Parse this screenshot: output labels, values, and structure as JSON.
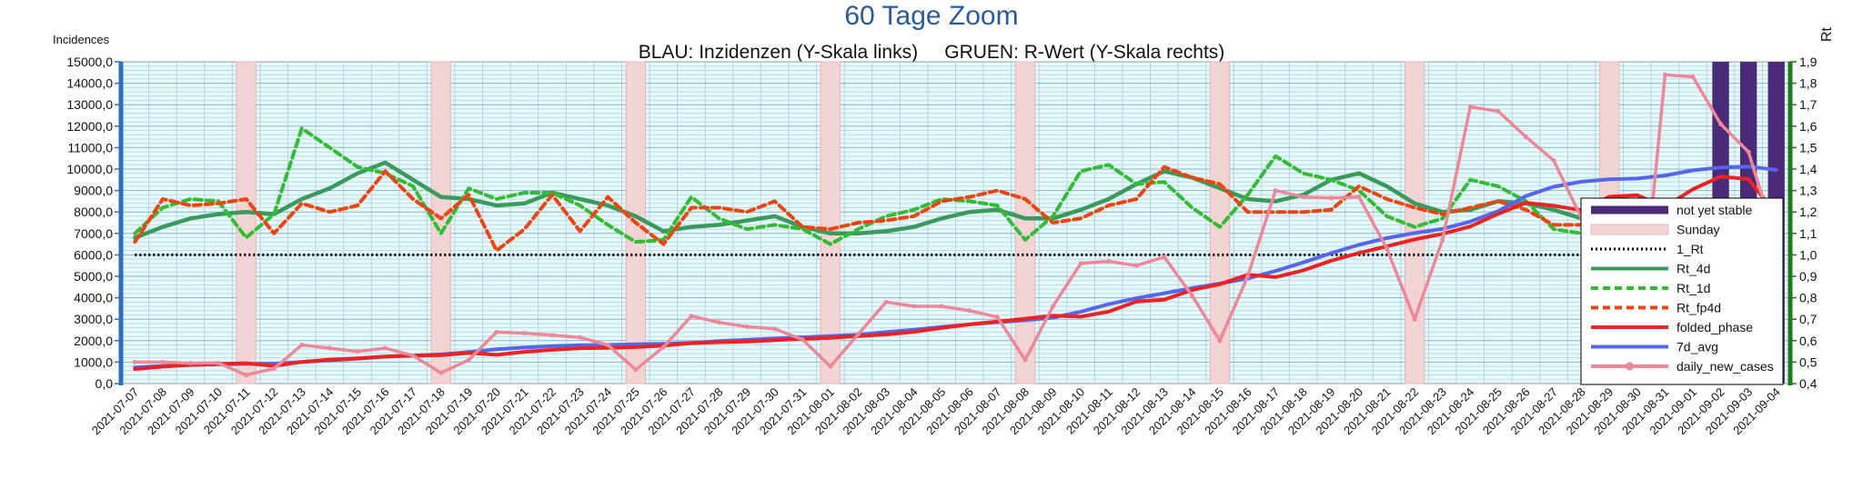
{
  "chart_data": {
    "type": "line",
    "title": "60 Tage Zoom",
    "subtitle": "BLAU: Inzidenzen (Y-Skala links)     GRUEN: R-Wert (Y-Skala rechts)",
    "ylabel_left": "Incidences",
    "ylabel_right": "Rt",
    "ylim_left": [
      0,
      15000
    ],
    "ylim_right": [
      0.4,
      1.9
    ],
    "y_ticks_left": [
      "0,0",
      "1000,0",
      "2000,0",
      "3000,0",
      "4000,0",
      "5000,0",
      "6000,0",
      "7000,0",
      "8000,0",
      "9000,0",
      "10000,0",
      "11000,0",
      "12000,0",
      "13000,0",
      "14000,0",
      "15000,0"
    ],
    "y_ticks_right": [
      "0,4",
      "0,5",
      "0,6",
      "0,7",
      "0,8",
      "0,9",
      "1,0",
      "1,1",
      "1,2",
      "1,3",
      "1,4",
      "1,5",
      "1,6",
      "1,7",
      "1,8",
      "1,9"
    ],
    "grid": true,
    "legend_position": "right",
    "dates": [
      "2021-07-07",
      "2021-07-08",
      "2021-07-09",
      "2021-07-10",
      "2021-07-11",
      "2021-07-12",
      "2021-07-13",
      "2021-07-14",
      "2021-07-15",
      "2021-07-16",
      "2021-07-17",
      "2021-07-18",
      "2021-07-19",
      "2021-07-20",
      "2021-07-21",
      "2021-07-22",
      "2021-07-23",
      "2021-07-24",
      "2021-07-25",
      "2021-07-26",
      "2021-07-27",
      "2021-07-28",
      "2021-07-29",
      "2021-07-30",
      "2021-07-31",
      "2021-08-01",
      "2021-08-02",
      "2021-08-03",
      "2021-08-04",
      "2021-08-05",
      "2021-08-06",
      "2021-08-07",
      "2021-08-08",
      "2021-08-09",
      "2021-08-10",
      "2021-08-11",
      "2021-08-12",
      "2021-08-13",
      "2021-08-14",
      "2021-08-15",
      "2021-08-16",
      "2021-08-17",
      "2021-08-18",
      "2021-08-19",
      "2021-08-20",
      "2021-08-21",
      "2021-08-22",
      "2021-08-23",
      "2021-08-24",
      "2021-08-25",
      "2021-08-26",
      "2021-08-27",
      "2021-08-28",
      "2021-08-29",
      "2021-08-30",
      "2021-08-31",
      "2021-09-01",
      "2021-09-02",
      "2021-09-03",
      "2021-09-04"
    ],
    "sunday_dates": [
      "2021-07-11",
      "2021-07-18",
      "2021-07-25",
      "2021-08-01",
      "2021-08-08",
      "2021-08-15",
      "2021-08-22",
      "2021-08-29"
    ],
    "not_yet_stable_dates": [
      "2021-09-02",
      "2021-09-03",
      "2021-09-04"
    ],
    "series": [
      {
        "name": "not yet stable",
        "axis": "left",
        "kind": "bar",
        "color": "#4b2a7a"
      },
      {
        "name": "Sunday",
        "axis": "left",
        "kind": "bar",
        "color": "#f2d4d4"
      },
      {
        "name": "1_Rt",
        "axis": "right",
        "kind": "line",
        "style": "dotted",
        "color": "#000000",
        "values": [
          1.0,
          1.0,
          1.0,
          1.0,
          1.0,
          1.0,
          1.0,
          1.0,
          1.0,
          1.0,
          1.0,
          1.0,
          1.0,
          1.0,
          1.0,
          1.0,
          1.0,
          1.0,
          1.0,
          1.0,
          1.0,
          1.0,
          1.0,
          1.0,
          1.0,
          1.0,
          1.0,
          1.0,
          1.0,
          1.0,
          1.0,
          1.0,
          1.0,
          1.0,
          1.0,
          1.0,
          1.0,
          1.0,
          1.0,
          1.0,
          1.0,
          1.0,
          1.0,
          1.0,
          1.0,
          1.0,
          1.0,
          1.0,
          1.0,
          1.0,
          1.0,
          1.0,
          1.0,
          1.0,
          1.0,
          1.0,
          1.0,
          1.0,
          1.0,
          1.0
        ]
      },
      {
        "name": "Rt_4d",
        "axis": "right",
        "kind": "line",
        "style": "solid",
        "color": "#3a9a5b",
        "values": [
          1.08,
          1.13,
          1.17,
          1.19,
          1.2,
          1.19,
          1.26,
          1.31,
          1.38,
          1.43,
          1.35,
          1.27,
          1.26,
          1.23,
          1.24,
          1.29,
          1.26,
          1.23,
          1.18,
          1.11,
          1.13,
          1.14,
          1.16,
          1.18,
          1.13,
          1.1,
          1.1,
          1.11,
          1.13,
          1.17,
          1.2,
          1.21,
          1.17,
          1.17,
          1.21,
          1.26,
          1.33,
          1.39,
          1.36,
          1.31,
          1.26,
          1.25,
          1.28,
          1.35,
          1.38,
          1.32,
          1.24,
          1.2,
          1.21,
          1.25,
          1.24,
          1.21,
          1.17,
          1.12,
          1.07,
          1.06,
          1.07,
          1.06,
          1.06,
          1.02
        ]
      },
      {
        "name": "Rt_1d",
        "axis": "right",
        "kind": "line",
        "style": "dashed",
        "color": "#33bb33",
        "values": [
          1.1,
          1.22,
          1.26,
          1.25,
          1.08,
          1.19,
          1.59,
          1.5,
          1.41,
          1.38,
          1.32,
          1.1,
          1.31,
          1.26,
          1.29,
          1.29,
          1.23,
          1.14,
          1.06,
          1.07,
          1.27,
          1.17,
          1.12,
          1.14,
          1.12,
          1.05,
          1.12,
          1.18,
          1.21,
          1.26,
          1.25,
          1.23,
          1.07,
          1.18,
          1.39,
          1.42,
          1.33,
          1.34,
          1.22,
          1.13,
          1.28,
          1.46,
          1.38,
          1.35,
          1.3,
          1.18,
          1.13,
          1.17,
          1.35,
          1.32,
          1.25,
          1.12,
          1.1,
          1.04,
          1.03,
          1.05,
          1.03,
          1.02,
          1.0,
          0.91
        ]
      },
      {
        "name": "Rt_fp4d",
        "axis": "right",
        "kind": "line",
        "style": "dashed",
        "color": "#ee4411",
        "values": [
          1.06,
          1.26,
          1.23,
          1.24,
          1.26,
          1.1,
          1.24,
          1.2,
          1.23,
          1.39,
          1.26,
          1.17,
          1.28,
          1.02,
          1.12,
          1.28,
          1.11,
          1.27,
          1.15,
          1.05,
          1.22,
          1.22,
          1.2,
          1.25,
          1.13,
          1.12,
          1.15,
          1.16,
          1.18,
          1.25,
          1.27,
          1.3,
          1.26,
          1.15,
          1.17,
          1.23,
          1.26,
          1.41,
          1.36,
          1.33,
          1.2,
          1.2,
          1.2,
          1.21,
          1.32,
          1.26,
          1.22,
          1.19,
          1.22,
          1.25,
          1.21,
          1.14,
          1.14,
          1.04,
          0.98,
          1.12,
          1.11,
          1.09,
          1.15,
          0.92
        ]
      },
      {
        "name": "folded_phase",
        "axis": "left",
        "kind": "line",
        "style": "solid",
        "color": "#ee2222",
        "values": [
          680,
          790,
          870,
          910,
          950,
          820,
          1010,
          1120,
          1180,
          1260,
          1300,
          1320,
          1430,
          1340,
          1480,
          1570,
          1650,
          1660,
          1700,
          1770,
          1880,
          1930,
          1960,
          2020,
          2090,
          2130,
          2210,
          2290,
          2410,
          2590,
          2760,
          2890,
          3020,
          3170,
          3120,
          3350,
          3820,
          3910,
          4360,
          4630,
          5070,
          4960,
          5280,
          5730,
          6090,
          6400,
          6720,
          6980,
          7320,
          7910,
          8430,
          8290,
          8080,
          8710,
          8780,
          8240,
          9060,
          9650,
          9530,
          7900
        ]
      },
      {
        "name": "7d_avg",
        "axis": "left",
        "kind": "line",
        "style": "solid",
        "color": "#5566ee",
        "values": [
          750,
          820,
          870,
          900,
          920,
          930,
          1010,
          1080,
          1160,
          1250,
          1310,
          1360,
          1470,
          1600,
          1680,
          1750,
          1790,
          1800,
          1830,
          1850,
          1900,
          1980,
          2040,
          2100,
          2160,
          2210,
          2280,
          2400,
          2510,
          2640,
          2760,
          2860,
          2950,
          3070,
          3350,
          3700,
          3980,
          4210,
          4450,
          4660,
          4900,
          5250,
          5650,
          6080,
          6470,
          6780,
          7020,
          7210,
          7550,
          8040,
          8740,
          9180,
          9410,
          9520,
          9560,
          9700,
          9940,
          10070,
          10120,
          9960
        ]
      },
      {
        "name": "daily_new_cases",
        "axis": "left",
        "kind": "line",
        "style": "solid",
        "marker": "circle",
        "color": "#ee8899",
        "values": [
          1000,
          1000,
          950,
          960,
          400,
          700,
          1800,
          1650,
          1500,
          1650,
          1300,
          500,
          1100,
          2400,
          2350,
          2250,
          2150,
          1800,
          650,
          1700,
          3150,
          2850,
          2650,
          2550,
          2050,
          800,
          2300,
          3800,
          3600,
          3600,
          3400,
          3100,
          1100,
          3600,
          5600,
          5700,
          5500,
          5900,
          4100,
          2000,
          5000,
          9000,
          8700,
          8650,
          8700,
          6300,
          3000,
          6700,
          12900,
          12700,
          11500,
          10400,
          7700,
          7600,
          1050,
          14400,
          14300,
          12100,
          10800,
          6600
        ]
      }
    ]
  }
}
